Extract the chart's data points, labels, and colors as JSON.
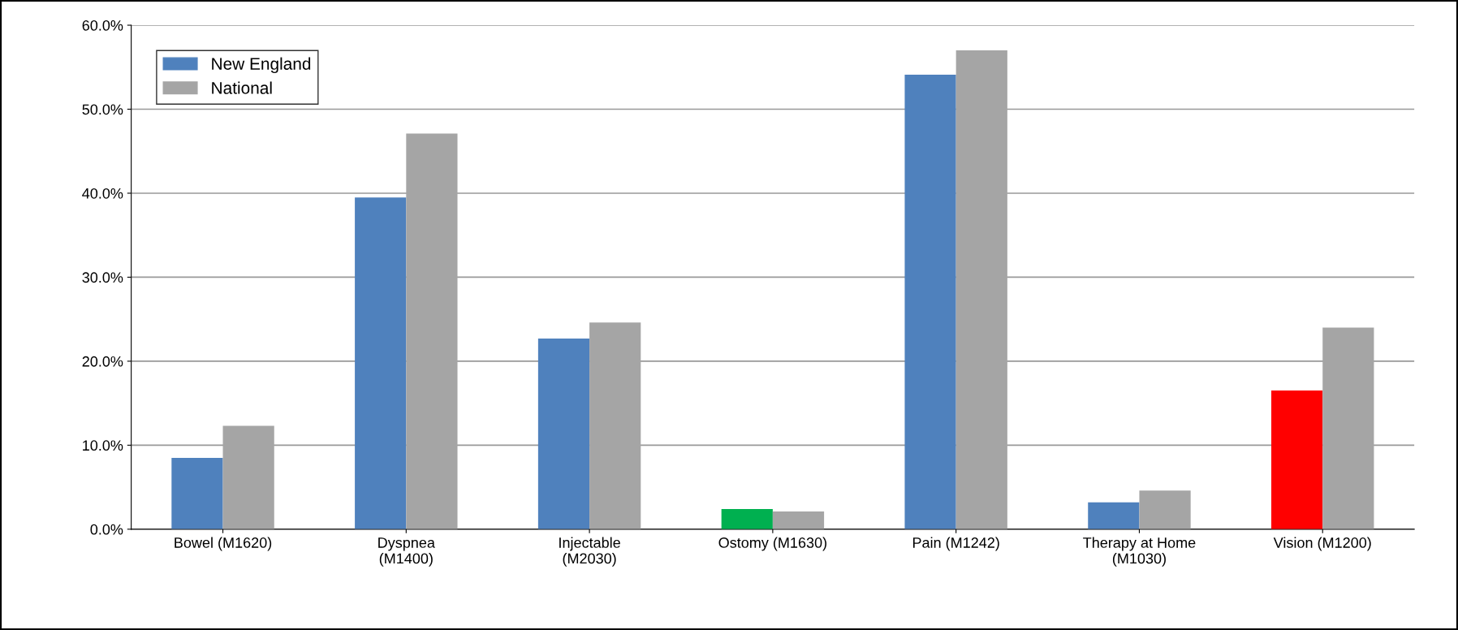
{
  "chart_data": {
    "type": "bar",
    "categories": [
      "Bowel (M1620)",
      "Dyspnea\n(M1400)",
      "Injectable\n(M2030)",
      "Ostomy (M1630)",
      "Pain (M1242)",
      "Therapy at Home\n(M1030)",
      "Vision (M1200)"
    ],
    "series": [
      {
        "name": "New England",
        "color": "#4f81bd",
        "colors": [
          "#4f81bd",
          "#4f81bd",
          "#4f81bd",
          "#00b050",
          "#4f81bd",
          "#4f81bd",
          "#ff0000"
        ],
        "values": [
          8.5,
          39.5,
          22.7,
          2.4,
          54.1,
          3.2,
          16.5
        ]
      },
      {
        "name": "National",
        "color": "#a5a5a5",
        "values": [
          12.3,
          47.1,
          24.6,
          2.1,
          57.0,
          4.6,
          24.0
        ]
      }
    ],
    "ylim": [
      0,
      60
    ],
    "yticks": [
      {
        "value": 0,
        "label": "0.0%"
      },
      {
        "value": 10,
        "label": "10.0%"
      },
      {
        "value": 20,
        "label": "20.0%"
      },
      {
        "value": 30,
        "label": "30.0%"
      },
      {
        "value": 40,
        "label": "40.0%"
      },
      {
        "value": 50,
        "label": "50.0%"
      },
      {
        "value": 60,
        "label": "60.0%"
      }
    ],
    "grid": "y",
    "legend": "top left"
  }
}
